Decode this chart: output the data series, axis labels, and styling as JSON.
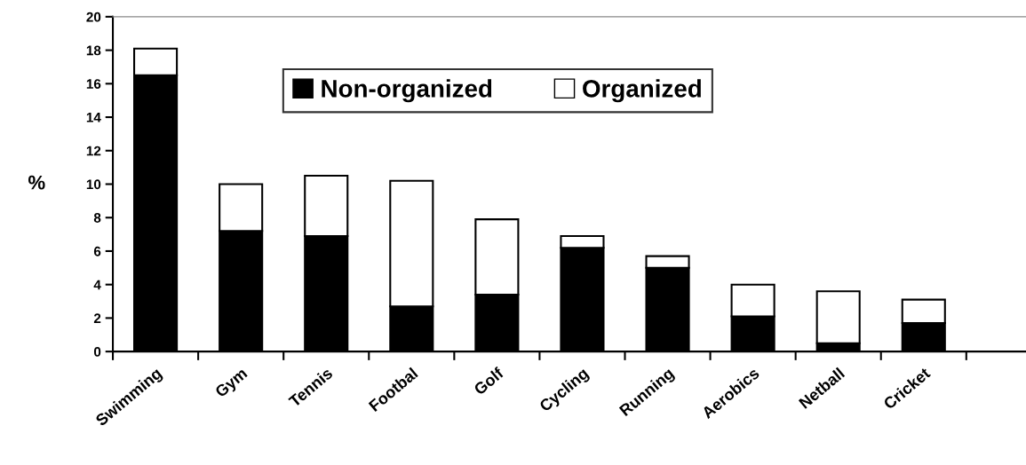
{
  "chart_data": {
    "type": "bar",
    "stacked": true,
    "ylabel": "%",
    "categories": [
      "Swimming",
      "Gym",
      "Tennis",
      "Footbal",
      "Golf",
      "Cycling",
      "Running",
      "Aerobics",
      "Netball",
      "Cricket",
      null
    ],
    "series": [
      {
        "name": "Non-organized",
        "color": "#000000",
        "values": [
          16.5,
          7.2,
          6.9,
          2.7,
          3.4,
          6.2,
          5.0,
          2.1,
          0.5,
          1.7,
          null
        ]
      },
      {
        "name": "Organized",
        "color": "#ffffff",
        "values": [
          1.6,
          2.8,
          3.6,
          7.5,
          4.5,
          0.7,
          0.7,
          1.9,
          3.1,
          1.4,
          null
        ]
      }
    ],
    "ylim": [
      0,
      20
    ],
    "yticks": [
      0,
      2,
      4,
      6,
      8,
      10,
      12,
      14,
      16,
      18,
      20
    ],
    "grid": false,
    "legend": "top"
  }
}
